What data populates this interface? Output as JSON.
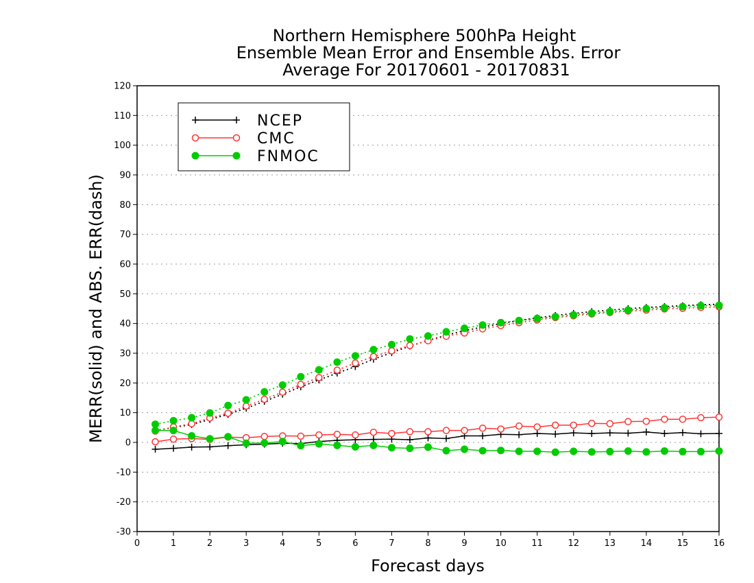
{
  "chart_data": {
    "type": "line",
    "title_lines": [
      "Northern Hemisphere 500hPa Height",
      "Ensemble Mean Error and Ensemble Abs. Error",
      "Average For 20170601 - 20170831"
    ],
    "xlabel": "Forecast days",
    "ylabel": "MERR(solid) and ABS. ERR(dash)",
    "xlim": [
      0,
      16
    ],
    "ylim": [
      -30,
      120
    ],
    "xticks": [
      0,
      1,
      2,
      3,
      4,
      5,
      6,
      7,
      8,
      9,
      10,
      11,
      12,
      13,
      14,
      15,
      16
    ],
    "yticks": [
      -30,
      -20,
      -10,
      0,
      10,
      20,
      30,
      40,
      50,
      60,
      70,
      80,
      90,
      100,
      110,
      120
    ],
    "grid": "horizontal dotted",
    "legend_position": "top-left",
    "x": [
      0.5,
      1,
      1.5,
      2,
      2.5,
      3,
      3.5,
      4,
      4.5,
      5,
      5.5,
      6,
      6.5,
      7,
      7.5,
      8,
      8.5,
      9,
      9.5,
      10,
      10.5,
      11,
      11.5,
      12,
      12.5,
      13,
      13.5,
      14,
      14.5,
      15,
      15.5,
      16
    ],
    "series": [
      {
        "name": "NCEP",
        "color": "#000000",
        "marker": "plus",
        "merr": [
          -2.3,
          -2.0,
          -1.6,
          -1.5,
          -1.1,
          -0.8,
          -0.6,
          -0.3,
          -0.4,
          0.3,
          0.7,
          0.9,
          1.0,
          1.1,
          0.9,
          1.5,
          1.3,
          2.2,
          2.2,
          2.7,
          2.6,
          3.0,
          2.8,
          3.2,
          3.0,
          3.2,
          3.1,
          3.5,
          3.0,
          3.3,
          2.9,
          3.0
        ],
        "abs_err": [
          4.0,
          5.0,
          6.0,
          7.7,
          9.4,
          11.5,
          13.8,
          16.2,
          18.7,
          21.0,
          23.3,
          25.5,
          28.0,
          30.2,
          32.4,
          34.3,
          36.1,
          37.6,
          38.8,
          40.0,
          41.0,
          41.9,
          42.7,
          43.4,
          44.0,
          44.5,
          45.0,
          45.4,
          45.7,
          46.0,
          46.3,
          46.5
        ]
      },
      {
        "name": "CMC",
        "color": "#ff3333",
        "marker": "open-circle",
        "merr": [
          0.2,
          1.1,
          1.3,
          1.0,
          1.8,
          1.6,
          2.0,
          2.2,
          2.1,
          2.5,
          2.7,
          2.5,
          3.4,
          3.0,
          3.6,
          3.6,
          4.0,
          4.0,
          4.8,
          4.5,
          5.5,
          5.2,
          5.8,
          5.8,
          6.4,
          6.3,
          7.0,
          7.1,
          7.8,
          7.8,
          8.3,
          8.5
        ],
        "abs_err": [
          3.8,
          5.2,
          6.3,
          8.2,
          9.8,
          12.2,
          14.5,
          16.9,
          19.5,
          21.8,
          24.3,
          26.7,
          28.9,
          30.8,
          32.6,
          34.2,
          35.7,
          36.8,
          38.2,
          39.3,
          40.3,
          41.2,
          42.0,
          42.6,
          43.2,
          43.7,
          44.2,
          44.5,
          44.9,
          45.1,
          45.4,
          45.6
        ]
      },
      {
        "name": "FNMOC",
        "color": "#00cc00",
        "marker": "filled-circle",
        "merr": [
          4.0,
          4.0,
          2.2,
          1.2,
          1.9,
          -0.3,
          -0.2,
          0.3,
          -1.1,
          -0.5,
          -1.0,
          -1.5,
          -1.0,
          -1.8,
          -2.0,
          -1.6,
          -2.8,
          -2.3,
          -2.8,
          -2.7,
          -3.0,
          -3.0,
          -3.3,
          -3.0,
          -3.2,
          -3.1,
          -2.9,
          -3.2,
          -2.9,
          -3.1,
          -3.1,
          -2.9
        ],
        "abs_err": [
          6.1,
          7.3,
          8.3,
          9.9,
          12.4,
          14.3,
          17.0,
          19.3,
          22.1,
          24.4,
          27.0,
          29.1,
          31.2,
          32.9,
          34.8,
          35.8,
          37.2,
          38.4,
          39.5,
          40.3,
          41.0,
          41.7,
          42.3,
          42.9,
          43.5,
          44.0,
          44.5,
          45.0,
          45.3,
          45.7,
          46.0,
          46.1
        ]
      }
    ]
  }
}
